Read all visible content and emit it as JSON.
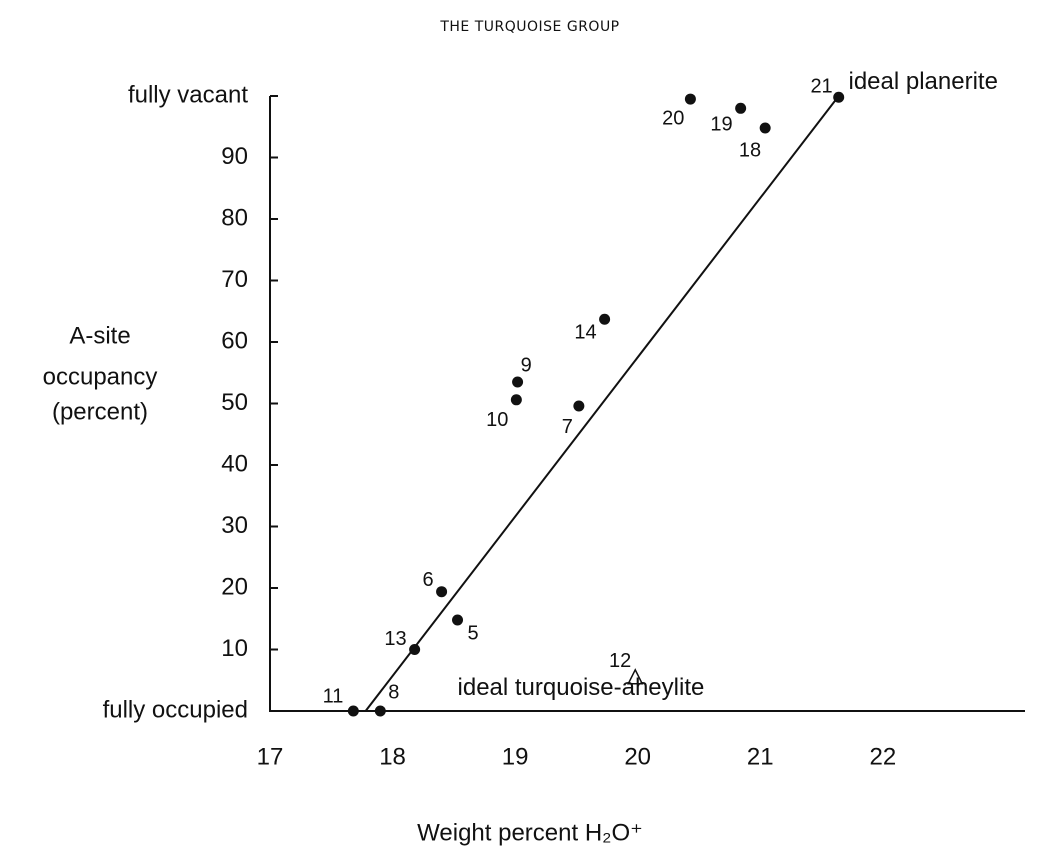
{
  "header": "THE TURQUOISE GROUP",
  "chart_data": {
    "type": "scatter",
    "xlabel": "Weight percent H₂O⁺",
    "ylabel": [
      "A-site",
      "occupancy",
      "(percent)"
    ],
    "xlim": [
      17,
      23.16
    ],
    "ylim": [
      0,
      100
    ],
    "xticks": [
      17,
      18,
      19,
      20,
      21,
      22
    ],
    "yticks": [
      {
        "value": 0,
        "label": "fully occupied"
      },
      10,
      20,
      30,
      40,
      50,
      60,
      70,
      80,
      90,
      {
        "value": 100,
        "label": "fully vacant"
      }
    ],
    "grid": false,
    "series": [
      {
        "marker": "circle",
        "color": "#111",
        "labels": [
          "11",
          "8",
          "13",
          "6",
          "5",
          "10",
          "9",
          "7",
          "14",
          "20",
          "19",
          "18",
          "21"
        ],
        "x": [
          17.68,
          17.9,
          18.18,
          18.4,
          18.53,
          19.01,
          19.02,
          19.52,
          19.73,
          20.43,
          20.84,
          21.04,
          21.64
        ],
        "values": [
          0,
          0,
          10,
          19.4,
          14.8,
          50.6,
          53.5,
          49.6,
          63.7,
          99.5,
          98,
          94.8,
          99.8
        ]
      },
      {
        "marker": "triangle",
        "color": "#111",
        "labels": [
          "12"
        ],
        "x": [
          19.98
        ],
        "values": [
          5.4
        ]
      }
    ],
    "fit_line": {
      "x": [
        17.78,
        21.64
      ],
      "y": [
        0,
        100
      ],
      "color": "#111"
    },
    "annotations": [
      {
        "text": "ideal planerite",
        "x": 21.72,
        "y": 102.2
      },
      {
        "text": "ideal turquoise-aheylite",
        "x": 18.53,
        "y": 3.6
      }
    ]
  }
}
